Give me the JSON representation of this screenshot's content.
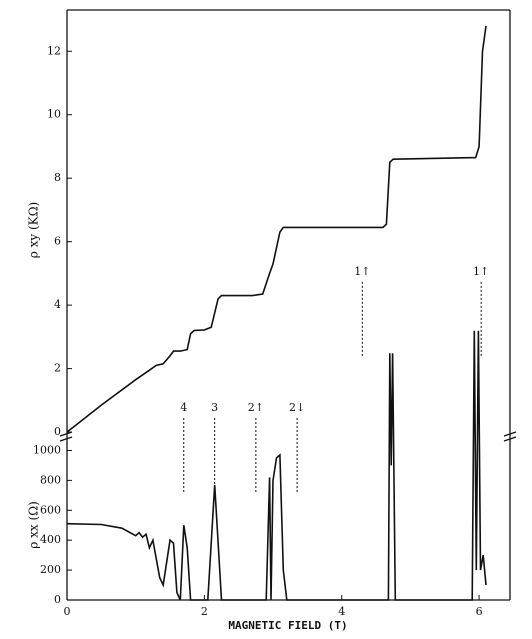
{
  "chart_data": [
    {
      "type": "line",
      "ylabel": "ρ xy (KΩ)",
      "xlim": [
        0,
        6.45
      ],
      "ylim": [
        -0.25,
        13.3
      ],
      "yticks": [
        0,
        2,
        4,
        6,
        8,
        10,
        12
      ],
      "color": "#111111",
      "x": [
        0,
        0.5,
        1.0,
        1.2,
        1.3,
        1.4,
        1.5,
        1.55,
        1.65,
        1.75,
        1.8,
        1.85,
        2.0,
        2.1,
        2.2,
        2.25,
        2.7,
        2.85,
        2.95,
        3.0,
        3.1,
        3.15,
        4.6,
        4.65,
        4.7,
        4.75,
        5.95,
        6.0,
        6.05,
        6.1
      ],
      "values": [
        0,
        0.85,
        1.65,
        1.95,
        2.1,
        2.15,
        2.4,
        2.55,
        2.55,
        2.6,
        3.1,
        3.2,
        3.22,
        3.3,
        4.2,
        4.3,
        4.3,
        4.35,
        5.0,
        5.3,
        6.3,
        6.45,
        6.45,
        6.55,
        8.5,
        8.6,
        8.65,
        9.0,
        12.0,
        12.8
      ]
    },
    {
      "type": "line",
      "ylabel": "ρ xx (Ω)",
      "xlabel": "MAGNETIC   FIELD   (T)",
      "xlim": [
        0,
        6.45
      ],
      "ylim": [
        0,
        1070
      ],
      "xticks": [
        0,
        2,
        4,
        6
      ],
      "yticks": [
        0,
        200,
        400,
        600,
        800,
        1000
      ],
      "color": "#111111",
      "x": [
        0,
        0.5,
        0.8,
        1.0,
        1.05,
        1.1,
        1.15,
        1.2,
        1.25,
        1.35,
        1.4,
        1.5,
        1.55,
        1.6,
        1.65,
        1.7,
        1.75,
        1.8,
        2.05,
        2.15,
        2.25,
        2.9,
        2.95,
        2.97,
        3.0,
        3.05,
        3.1,
        3.15,
        3.2,
        4.65,
        4.68,
        4.7,
        4.72,
        4.74,
        4.78,
        5.9,
        5.93,
        5.96,
        5.99,
        6.02,
        6.06,
        6.1
      ],
      "values": [
        510,
        505,
        480,
        430,
        450,
        420,
        440,
        350,
        400,
        150,
        100,
        400,
        380,
        50,
        0,
        500,
        350,
        0,
        0,
        770,
        0,
        0,
        820,
        0,
        800,
        950,
        970,
        200,
        0,
        0,
        0,
        1650,
        900,
        1650,
        0,
        0,
        1800,
        200,
        1800,
        200,
        300,
        100
      ],
      "annotations": [
        {
          "text": "4",
          "x": 1.7,
          "y": 1284
        },
        {
          "text": "3",
          "x": 2.15,
          "y": 1284
        },
        {
          "text": "2↑",
          "x": 2.75,
          "y": 1284
        },
        {
          "text": "2↓",
          "x": 3.35,
          "y": 1284
        },
        {
          "text": "1↑",
          "x": 4.3,
          "y": 2194
        },
        {
          "text": "1↑",
          "x": 6.03,
          "y": 2194
        }
      ]
    }
  ]
}
